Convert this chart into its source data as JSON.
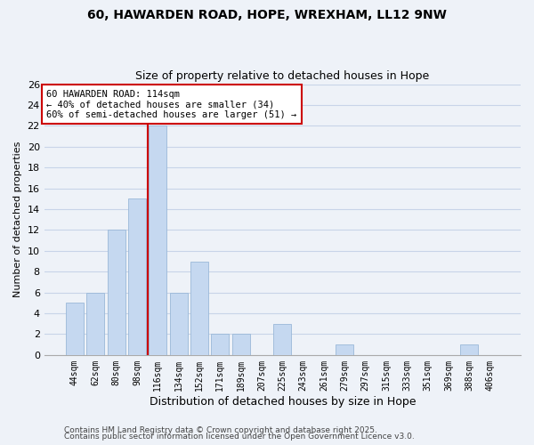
{
  "title1": "60, HAWARDEN ROAD, HOPE, WREXHAM, LL12 9NW",
  "title2": "Size of property relative to detached houses in Hope",
  "xlabel": "Distribution of detached houses by size in Hope",
  "ylabel": "Number of detached properties",
  "bar_labels": [
    "44sqm",
    "62sqm",
    "80sqm",
    "98sqm",
    "116sqm",
    "134sqm",
    "152sqm",
    "171sqm",
    "189sqm",
    "207sqm",
    "225sqm",
    "243sqm",
    "261sqm",
    "279sqm",
    "297sqm",
    "315sqm",
    "333sqm",
    "351sqm",
    "369sqm",
    "388sqm",
    "406sqm"
  ],
  "bar_values": [
    5,
    6,
    12,
    15,
    22,
    6,
    9,
    2,
    2,
    0,
    3,
    0,
    0,
    1,
    0,
    0,
    0,
    0,
    0,
    1,
    0
  ],
  "bar_color": "#c5d8f0",
  "bar_edge_color": "#9ab8d8",
  "grid_color": "#c8d4e8",
  "bg_color": "#eef2f8",
  "vline_x_index": 4,
  "vline_color": "#cc0000",
  "annotation_line1": "60 HAWARDEN ROAD: 114sqm",
  "annotation_line2": "← 40% of detached houses are smaller (34)",
  "annotation_line3": "60% of semi-detached houses are larger (51) →",
  "annotation_box_color": "#ffffff",
  "annotation_box_edge": "#cc0000",
  "ylim": [
    0,
    26
  ],
  "yticks": [
    0,
    2,
    4,
    6,
    8,
    10,
    12,
    14,
    16,
    18,
    20,
    22,
    24,
    26
  ],
  "footer1": "Contains HM Land Registry data © Crown copyright and database right 2025.",
  "footer2": "Contains public sector information licensed under the Open Government Licence v3.0."
}
